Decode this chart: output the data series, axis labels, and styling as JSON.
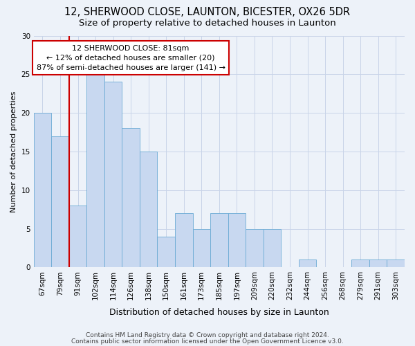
{
  "title1": "12, SHERWOOD CLOSE, LAUNTON, BICESTER, OX26 5DR",
  "title2": "Size of property relative to detached houses in Launton",
  "xlabel": "Distribution of detached houses by size in Launton",
  "ylabel": "Number of detached properties",
  "categories": [
    "67sqm",
    "79sqm",
    "91sqm",
    "102sqm",
    "114sqm",
    "126sqm",
    "138sqm",
    "150sqm",
    "161sqm",
    "173sqm",
    "185sqm",
    "197sqm",
    "209sqm",
    "220sqm",
    "232sqm",
    "244sqm",
    "256sqm",
    "268sqm",
    "279sqm",
    "291sqm",
    "303sqm"
  ],
  "values": [
    20,
    17,
    8,
    25,
    24,
    18,
    15,
    4,
    7,
    5,
    7,
    7,
    5,
    5,
    0,
    1,
    0,
    0,
    1,
    1,
    1
  ],
  "bar_color": "#c8d8f0",
  "bar_edge_color": "#6aaad4",
  "marker_color": "#cc0000",
  "annotation_line1": "12 SHERWOOD CLOSE: 81sqm",
  "annotation_line2": "← 12% of detached houses are smaller (20)",
  "annotation_line3": "87% of semi-detached houses are larger (141) →",
  "annotation_box_color": "#ffffff",
  "annotation_box_edge": "#cc0000",
  "ylim": [
    0,
    30
  ],
  "yticks": [
    0,
    5,
    10,
    15,
    20,
    25,
    30
  ],
  "grid_color": "#c8d4e8",
  "bg_color": "#edf2f9",
  "plot_bg_color": "#edf2f9",
  "footer1": "Contains HM Land Registry data © Crown copyright and database right 2024.",
  "footer2": "Contains public sector information licensed under the Open Government Licence v3.0.",
  "title1_fontsize": 10.5,
  "title2_fontsize": 9.5,
  "xlabel_fontsize": 9,
  "ylabel_fontsize": 8,
  "tick_fontsize": 7.5,
  "annotation_fontsize": 8,
  "footer_fontsize": 6.5
}
